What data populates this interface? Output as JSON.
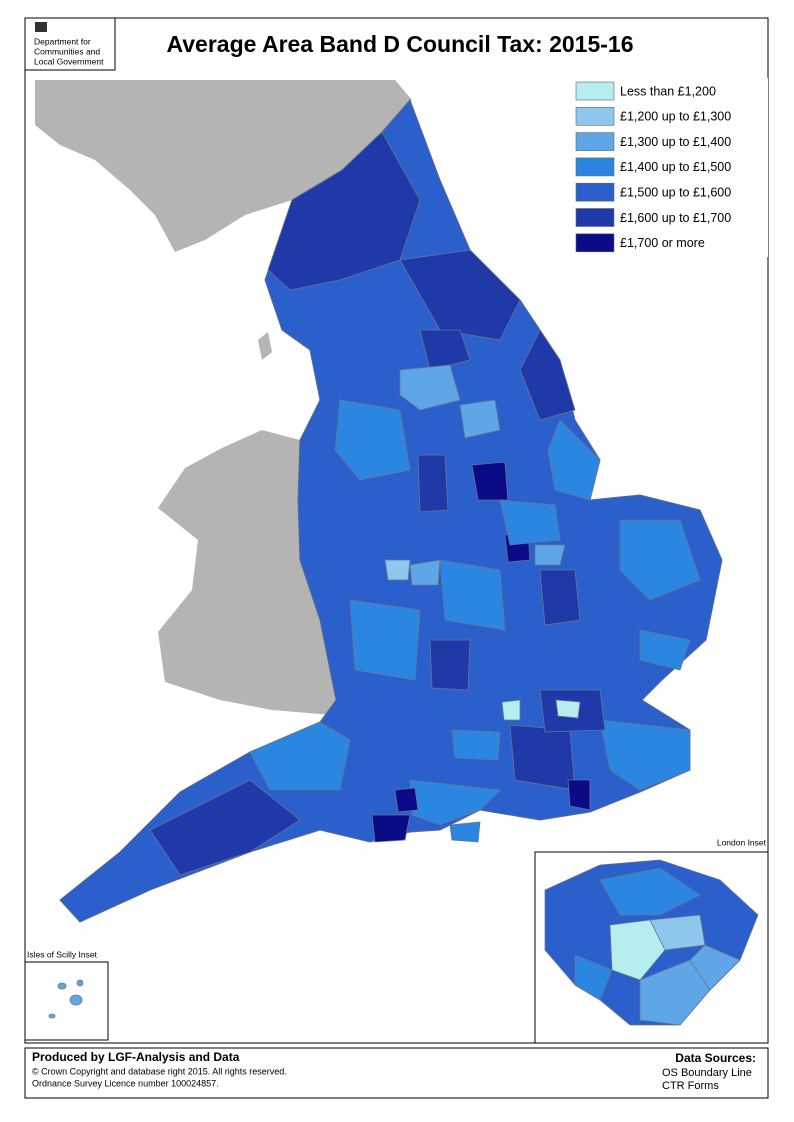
{
  "logo": {
    "lines": [
      "Department for",
      "Communities and",
      "Local Government"
    ]
  },
  "title": "Average Area Band D Council Tax: 2015-16",
  "legend": [
    {
      "label": "Less than £1,200",
      "color": "#b6eef0"
    },
    {
      "label": "£1,200 up to £1,300",
      "color": "#8ec6ec"
    },
    {
      "label": "£1,300 up to £1,400",
      "color": "#5fa6e6"
    },
    {
      "label": "£1,400 up to £1,500",
      "color": "#2a86e0"
    },
    {
      "label": "£1,500 up to £1,600",
      "color": "#2b5fcb"
    },
    {
      "label": "£1,600 up to £1,700",
      "color": "#1f3aa8"
    },
    {
      "label": "£1,700 or more",
      "color": "#0b0b88"
    }
  ],
  "insets": {
    "london": "London Inset",
    "scilly": "Isles of Scilly Inset"
  },
  "footer": {
    "producer": "Produced by LGF-Analysis and Data",
    "copyright": "© Crown Copyright and database right 2015. All rights reserved.",
    "licence": "Ordnance Survey Licence number 100024857.",
    "sources_title": "Data Sources:",
    "sources": [
      "OS Boundary Line",
      "CTR Forms"
    ]
  }
}
